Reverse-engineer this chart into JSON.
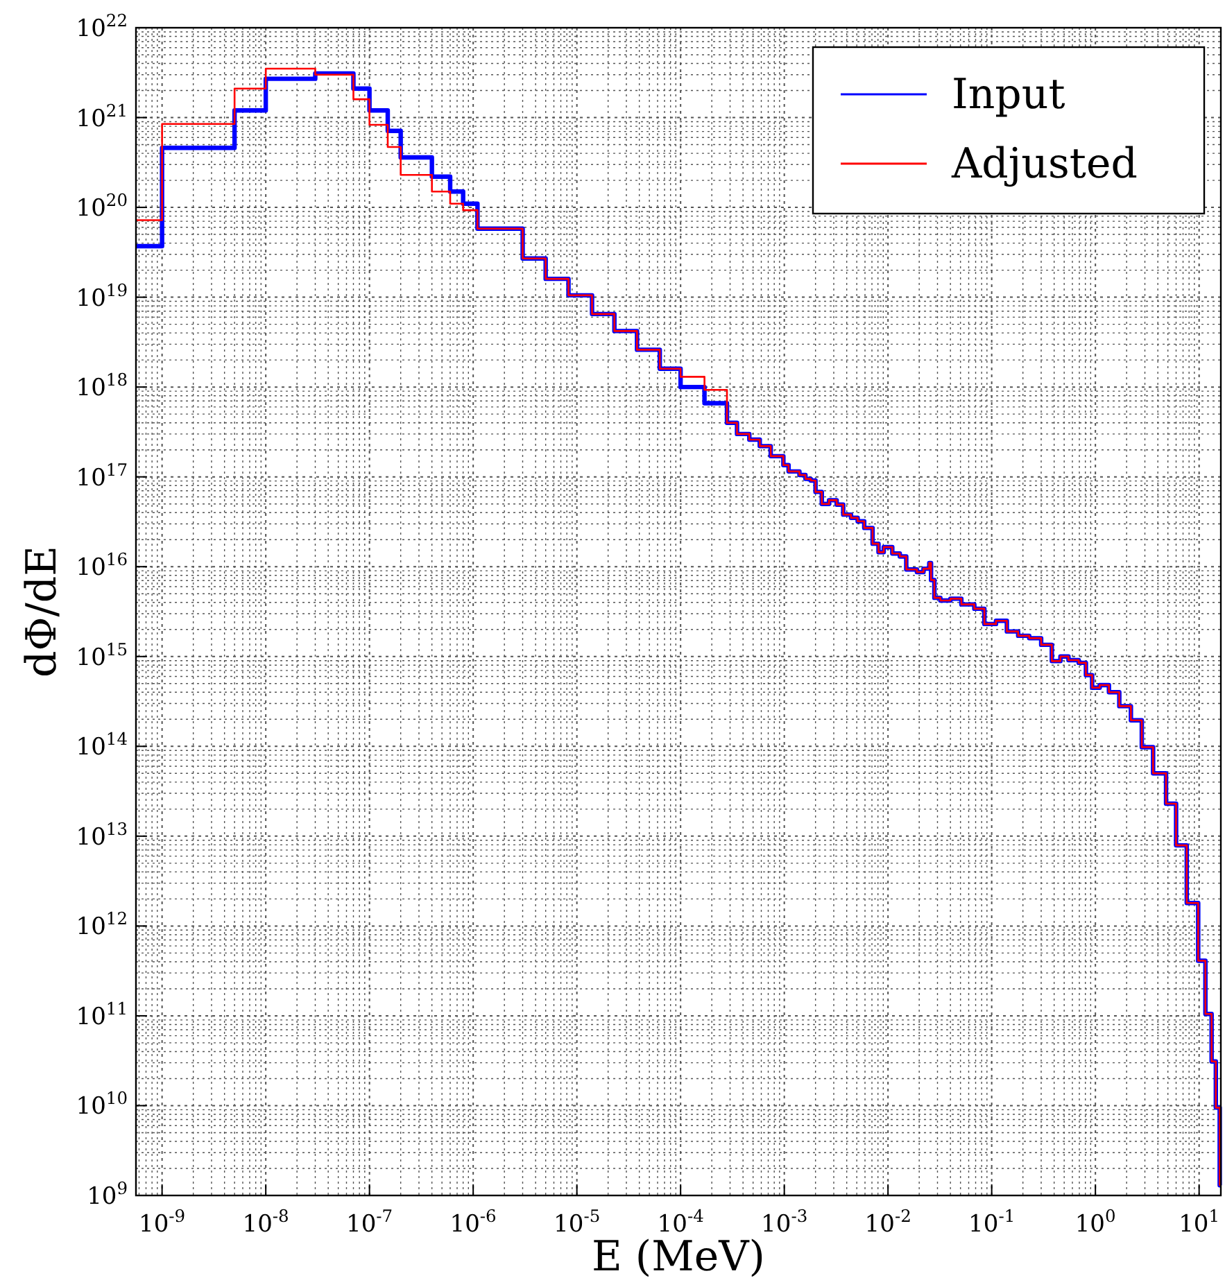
{
  "chart_data": {
    "type": "step",
    "xlabel": "E (MeV)",
    "ylabel": "dΦ/dE",
    "log": "xy",
    "grid": true,
    "legend": "top right",
    "line_style": "solid",
    "xlim": [
      5.6e-10,
      16.2
    ],
    "ylim": [
      1000000000.0,
      1e+22
    ],
    "xticks": [
      {
        "value": 1e-09,
        "label": "10$^{-9}$"
      },
      {
        "value": 1e-08,
        "label": "10$^{-8}$"
      },
      {
        "value": 1e-07,
        "label": "10$^{-7}$"
      },
      {
        "value": 1e-06,
        "label": "10$^{-6}$"
      },
      {
        "value": 1e-05,
        "label": "10$^{-5}$"
      },
      {
        "value": 0.0001,
        "label": "10$^{-4}$"
      },
      {
        "value": 0.001,
        "label": "10$^{-3}$"
      },
      {
        "value": 0.01,
        "label": "10$^{-2}$"
      },
      {
        "value": 0.1,
        "label": "10$^{-1}$"
      },
      {
        "value": 1,
        "label": "10$^{0}$"
      },
      {
        "value": 10,
        "label": "10$^{1}$"
      }
    ],
    "yticks": [
      {
        "value": 1000000000.0,
        "label": "10$^{9}$"
      },
      {
        "value": 10000000000.0,
        "label": "10$^{10}$"
      },
      {
        "value": 100000000000.0,
        "label": "10$^{11}$"
      },
      {
        "value": 1000000000000.0,
        "label": "10$^{12}$"
      },
      {
        "value": 10000000000000.0,
        "label": "10$^{13}$"
      },
      {
        "value": 100000000000000.0,
        "label": "10$^{14}$"
      },
      {
        "value": 1000000000000000.0,
        "label": "10$^{15}$"
      },
      {
        "value": 1e+16,
        "label": "10$^{16}$"
      },
      {
        "value": 1e+17,
        "label": "10$^{17}$"
      },
      {
        "value": 1e+18,
        "label": "10$^{18}$"
      },
      {
        "value": 1e+19,
        "label": "10$^{19}$"
      },
      {
        "value": 1e+20,
        "label": "10$^{20}$"
      },
      {
        "value": 1e+21,
        "label": "10$^{21}$"
      },
      {
        "value": 1e+22,
        "label": "10$^{22}$"
      }
    ],
    "x": [
      5.6e-10,
      1e-09,
      5e-09,
      1e-08,
      3e-08,
      7e-08,
      1e-07,
      1.5e-07,
      2e-07,
      4e-07,
      6e-07,
      8e-07,
      1.1e-06,
      3e-06,
      5e-06,
      8.3e-06,
      1.4e-05,
      2.3e-05,
      3.8e-05,
      6.3e-05,
      0.0001,
      0.00017,
      0.00028,
      0.00035,
      0.00046,
      0.00058,
      0.00074,
      0.00098,
      0.0011,
      0.0014,
      0.0016,
      0.0018,
      0.002,
      0.0023,
      0.0027,
      0.0032,
      0.0037,
      0.0044,
      0.0051,
      0.0059,
      0.0071,
      0.0081,
      0.0091,
      0.011,
      0.013,
      0.015,
      0.019,
      0.022,
      0.025,
      0.026,
      0.028,
      0.032,
      0.04,
      0.051,
      0.068,
      0.085,
      0.11,
      0.14,
      0.18,
      0.23,
      0.3,
      0.38,
      0.46,
      0.55,
      0.69,
      0.81,
      0.93,
      1.1,
      1.35,
      1.7,
      2.2,
      2.8,
      3.6,
      4.8,
      6.0,
      7.6,
      9.8,
      11.5,
      13.2,
      14.5,
      15.8,
      16.2
    ],
    "series": [
      {
        "name": "Input",
        "color": "#0000ff",
        "values": [
          3.7e+19,
          4.6e+20,
          1.2e+21,
          2.7e+21,
          3.1e+21,
          2.1e+21,
          1.2e+21,
          7.1e+20,
          3.6e+20,
          2.2e+20,
          1.5e+20,
          1.1e+20,
          5.8e+19,
          2.7e+19,
          1.6e+19,
          1.05e+19,
          6.5e+18,
          4.2e+18,
          2.6e+18,
          1.6e+18,
          1e+18,
          6.6e+17,
          4e+17,
          3e+17,
          2.6e+17,
          2.2e+17,
          1.7e+17,
          1.35e+17,
          1.15e+17,
          1.05e+17,
          9.5e+16,
          9.1e+16,
          6.8e+16,
          5e+16,
          5.5e+16,
          4.9e+16,
          3.8e+16,
          3.5e+16,
          3.2e+16,
          2.7e+16,
          1.8e+16,
          1.45e+16,
          1.65e+16,
          1.4e+16,
          1.3e+16,
          9300000000000000.0,
          8700000000000000.0,
          9500000000000000.0,
          1.1e+16,
          7100000000000000.0,
          4500000000000000.0,
          4200000000000000.0,
          4400000000000000.0,
          3800000000000000.0,
          3400000000000000.0,
          2300000000000000.0,
          2500000000000000.0,
          1900000000000000.0,
          1700000000000000.0,
          1600000000000000.0,
          1350000000000000.0,
          890000000000000.0,
          1000000000000000.0,
          910000000000000.0,
          850000000000000.0,
          620000000000000.0,
          450000000000000.0,
          480000000000000.0,
          400000000000000.0,
          280000000000000.0,
          195000000000000.0,
          98000000000000.0,
          50000000000000.0,
          23000000000000.0,
          7900000000000.0,
          1800000000000.0,
          410000000000.0,
          105000000000.0,
          31000000000.0,
          9500000000.0,
          1300000000.0,
          1300000000.0
        ]
      },
      {
        "name": "Adjusted",
        "color": "#ff0000",
        "values": [
          7.2e+19,
          8.5e+20,
          2.1e+21,
          3.5e+21,
          3e+21,
          1.6e+21,
          8.3e+20,
          4.7e+20,
          2.3e+20,
          1.5e+20,
          1.1e+20,
          9.3e+19,
          5.8e+19,
          2.7e+19,
          1.6e+19,
          1.05e+19,
          6.5e+18,
          4.2e+18,
          2.6e+18,
          1.6e+18,
          1.3e+18,
          9.3e+17,
          4e+17,
          3e+17,
          2.6e+17,
          2.2e+17,
          1.7e+17,
          1.35e+17,
          1.15e+17,
          1.05e+17,
          9.5e+16,
          9.1e+16,
          6.8e+16,
          5e+16,
          5.5e+16,
          4.9e+16,
          3.8e+16,
          3.5e+16,
          3.2e+16,
          2.7e+16,
          1.8e+16,
          1.45e+16,
          1.65e+16,
          1.4e+16,
          1.3e+16,
          9300000000000000.0,
          8700000000000000.0,
          9500000000000000.0,
          1.1e+16,
          7100000000000000.0,
          4500000000000000.0,
          4200000000000000.0,
          4400000000000000.0,
          3800000000000000.0,
          3400000000000000.0,
          2300000000000000.0,
          2500000000000000.0,
          1900000000000000.0,
          1700000000000000.0,
          1600000000000000.0,
          1350000000000000.0,
          890000000000000.0,
          1000000000000000.0,
          910000000000000.0,
          850000000000000.0,
          620000000000000.0,
          450000000000000.0,
          480000000000000.0,
          400000000000000.0,
          280000000000000.0,
          195000000000000.0,
          98000000000000.0,
          50000000000000.0,
          23000000000000.0,
          7900000000000.0,
          1800000000000.0,
          410000000000.0,
          105000000000.0,
          31000000000.0,
          9500000000.0,
          1300000000.0,
          1300000000.0
        ]
      }
    ]
  }
}
